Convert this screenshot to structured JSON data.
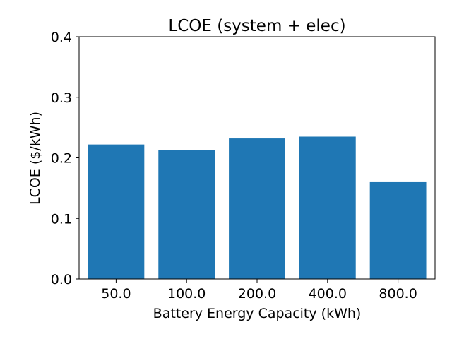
{
  "chart_data": {
    "type": "bar",
    "title": "LCOE (system + elec)",
    "xlabel": "Battery Energy Capacity (kWh)",
    "ylabel": "LCOE ($/kWh)",
    "categories": [
      "50.0",
      "100.0",
      "200.0",
      "400.0",
      "800.0"
    ],
    "values": [
      0.222,
      0.213,
      0.232,
      0.235,
      0.161
    ],
    "ylim": [
      0,
      0.4
    ],
    "yticks": [
      "0.0",
      "0.1",
      "0.2",
      "0.3",
      "0.4"
    ],
    "grid": false,
    "bar_color": "#1f77b4"
  }
}
